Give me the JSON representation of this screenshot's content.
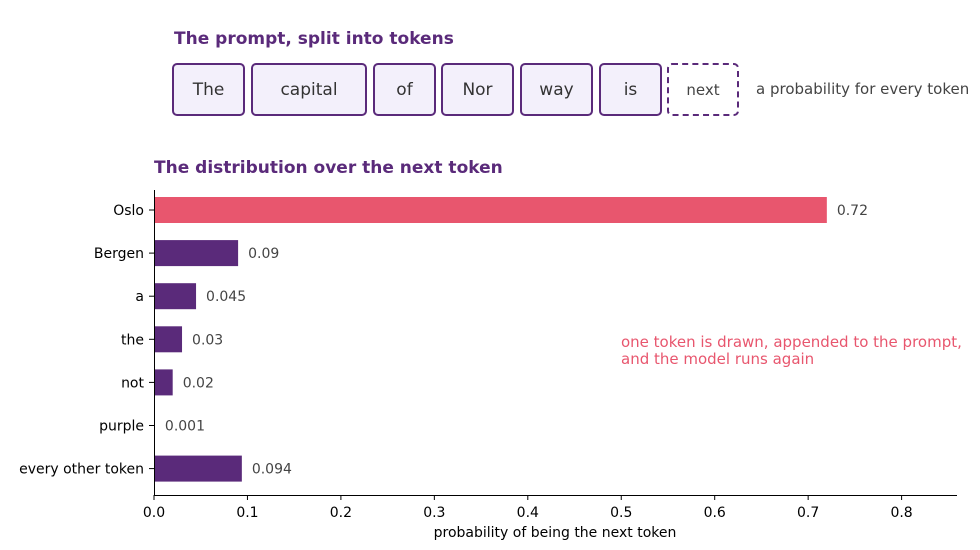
{
  "tokens_title": "The prompt, split into tokens",
  "tokens": [
    "The",
    "capital",
    "of",
    "Nor",
    "way",
    "is"
  ],
  "pending_token": "next",
  "token_note": "a probability for every token",
  "distribution_title": "The distribution over the next token",
  "annotation": {
    "line1": "one token is drawn, appended to the prompt,",
    "line2": "and the model runs again"
  },
  "colors": {
    "highlight": "#e8566e",
    "bar": "#5a2a7a",
    "title": "#5a2a7a"
  },
  "chart_data": {
    "type": "bar",
    "orientation": "horizontal",
    "categories": [
      "Oslo",
      "Bergen",
      "a",
      "the",
      "not",
      "purple",
      "every other token"
    ],
    "values": [
      0.72,
      0.09,
      0.045,
      0.03,
      0.02,
      0.001,
      0.094
    ],
    "value_labels": [
      "0.72",
      "0.09",
      "0.045",
      "0.03",
      "0.02",
      "0.001",
      "0.094"
    ],
    "highlight_category": "Oslo",
    "xlabel": "probability of being the next token",
    "xticks": [
      0.0,
      0.1,
      0.2,
      0.3,
      0.4,
      0.5,
      0.6,
      0.7,
      0.8
    ],
    "xtick_labels": [
      "0.0",
      "0.1",
      "0.2",
      "0.3",
      "0.4",
      "0.5",
      "0.6",
      "0.7",
      "0.8"
    ],
    "xlim": [
      0,
      0.86
    ],
    "grid": false
  }
}
